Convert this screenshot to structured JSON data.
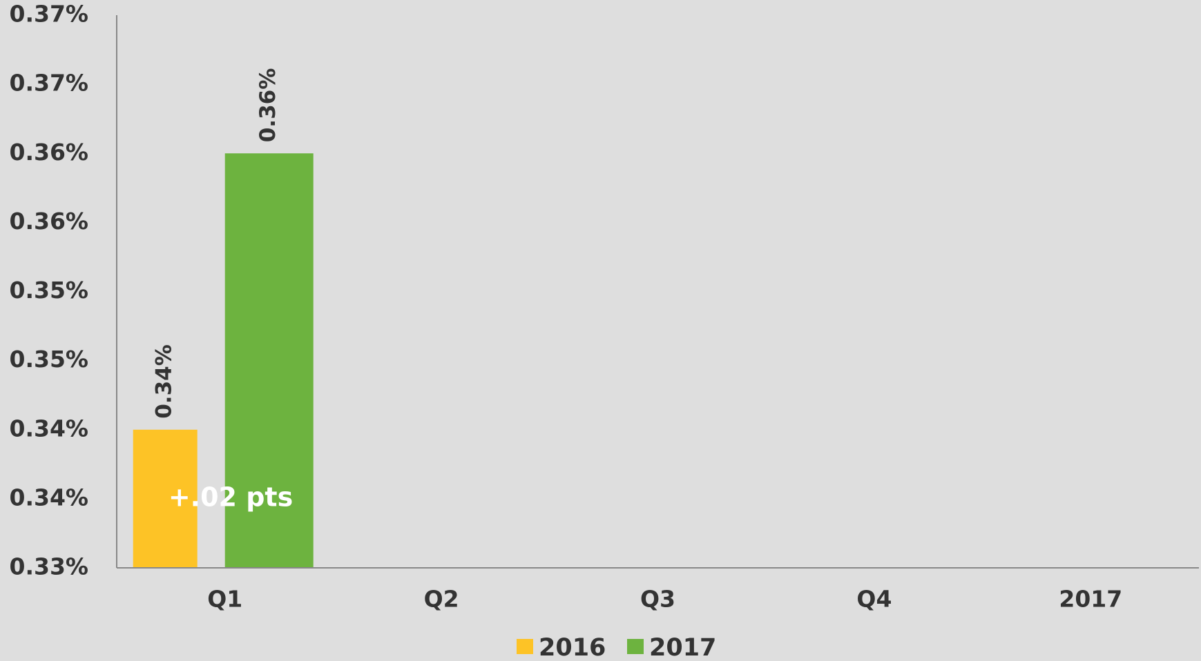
{
  "chart_data": {
    "type": "bar",
    "categories": [
      "Q1",
      "Q2",
      "Q3",
      "Q4",
      "2017"
    ],
    "series": [
      {
        "name": "2016",
        "color": "#fdc326",
        "values": [
          0.34,
          null,
          null,
          null,
          null
        ],
        "value_labels": [
          "0.34%",
          null,
          null,
          null,
          null
        ]
      },
      {
        "name": "2017",
        "color": "#6db33f",
        "values": [
          0.36,
          null,
          null,
          null,
          null
        ],
        "value_labels": [
          "0.36%",
          null,
          null,
          null,
          null
        ]
      }
    ],
    "annotation": "+.02 pts",
    "ylim": [
      0.33,
      0.37
    ],
    "yticks": [
      {
        "value": 0.33,
        "label": "0.33%"
      },
      {
        "value": 0.335,
        "label": "0.34%"
      },
      {
        "value": 0.34,
        "label": "0.34%"
      },
      {
        "value": 0.345,
        "label": "0.35%"
      },
      {
        "value": 0.35,
        "label": "0.35%"
      },
      {
        "value": 0.355,
        "label": "0.36%"
      },
      {
        "value": 0.36,
        "label": "0.36%"
      },
      {
        "value": 0.365,
        "label": "0.37%"
      },
      {
        "value": 0.37,
        "label": "0.37%"
      }
    ],
    "legend": "bottom"
  }
}
